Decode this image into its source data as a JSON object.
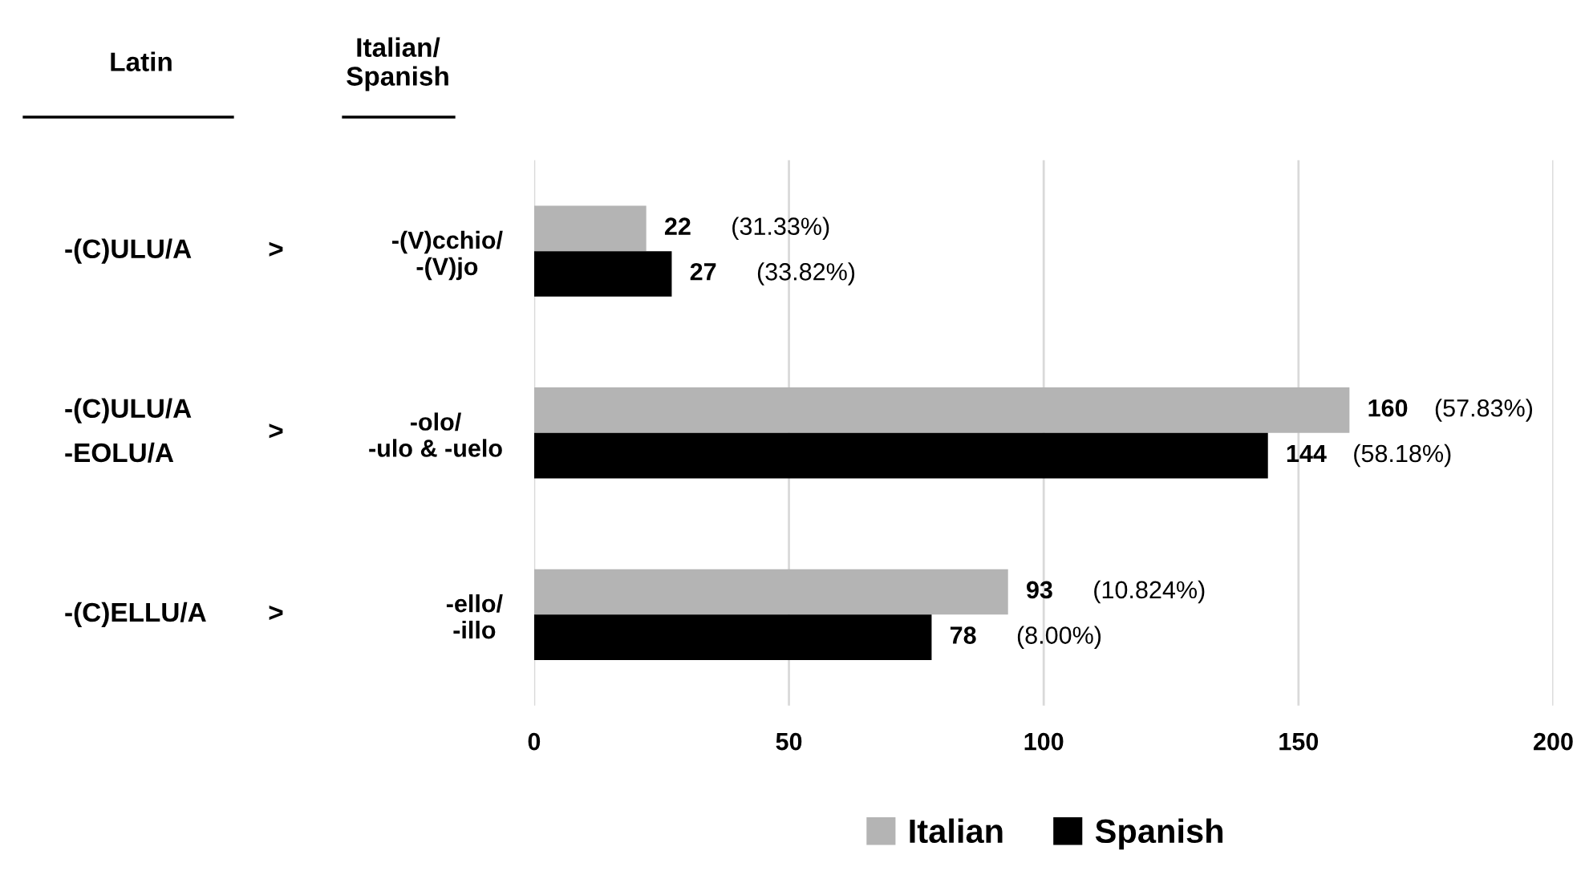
{
  "chart_data": {
    "type": "bar",
    "orientation": "horizontal",
    "categories": [
      "-(V)cchio/\n-(V)jo",
      "-olo/\n-ulo & -uelo",
      "-ello/\n-illo"
    ],
    "series": [
      {
        "name": "Italian",
        "color": "#b4b4b4",
        "values": [
          22,
          160,
          93
        ],
        "value_labels": [
          "22",
          "160",
          "93"
        ]
      },
      {
        "name": "Spanish",
        "color": "#000000",
        "values": [
          27,
          144,
          78
        ],
        "value_labels": [
          "27",
          "144",
          "78"
        ]
      }
    ],
    "xlim": [
      0,
      200
    ],
    "xticks": [
      0,
      50,
      100,
      150,
      200
    ],
    "grid": "x",
    "legend": "bottom",
    "annotations": [
      "Latin",
      "Italian/\nSpanish",
      "-(C)ULU/A",
      "-(C)ULU/A\n-EOLU/A",
      "-(C)ELLU/A",
      ">",
      ">",
      ">",
      "(31.33%)",
      "(57.83%)",
      "(10.824%)",
      "(33.82%)",
      "(58.18%)",
      "(8.00%)"
    ]
  }
}
